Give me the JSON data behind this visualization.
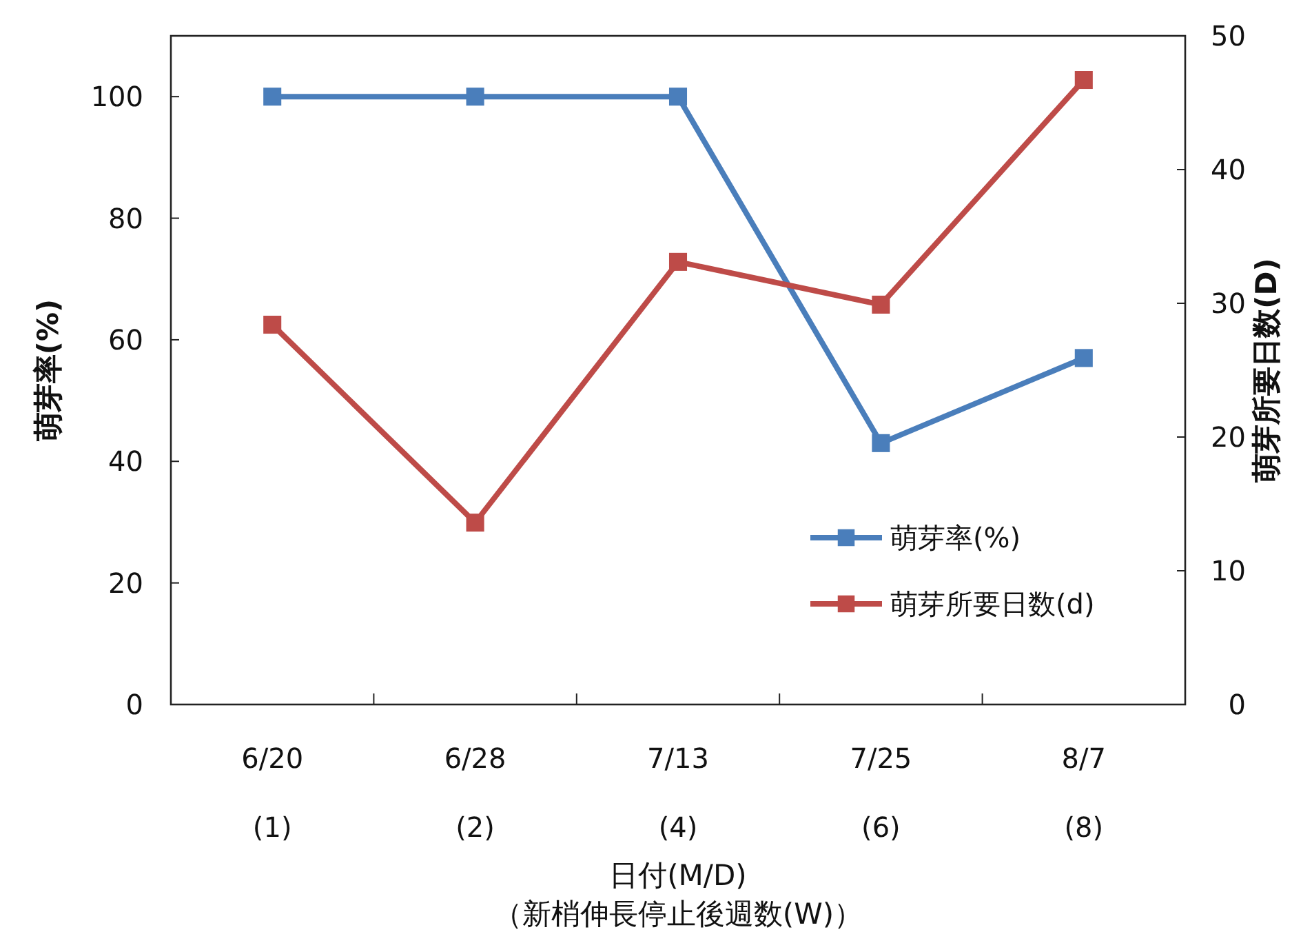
{
  "chart_data": {
    "type": "line",
    "xlabel": "日付(M/D)\n（新梢伸長停止後週数(W)）",
    "ylabel": "萌芽率(%)",
    "y2label": "萌芽所要日数(D)",
    "categories": [
      "6/20\n(1)",
      "6/28\n(2)",
      "7/13\n(4)",
      "7/25\n(6)",
      "8/7\n(8)"
    ],
    "series": [
      {
        "name": "萌芽率(%)",
        "color": "#4a7ebb",
        "values": [
          100,
          100,
          100,
          43,
          57
        ]
      },
      {
        "name": "萌芽所要日数(d)",
        "color": "#be4b48",
        "values": [
          28.4,
          13.6,
          33.1,
          29.9,
          46.7
        ],
        "axis": "y2"
      }
    ],
    "ylim": [
      0,
      110
    ],
    "yticks": [
      0,
      20,
      40,
      60,
      80,
      100
    ],
    "y2lim": [
      0,
      50
    ],
    "y2ticks": [
      0,
      10,
      20,
      30,
      40,
      50
    ],
    "marker": "square",
    "legend": "bottom right",
    "grid": false
  }
}
